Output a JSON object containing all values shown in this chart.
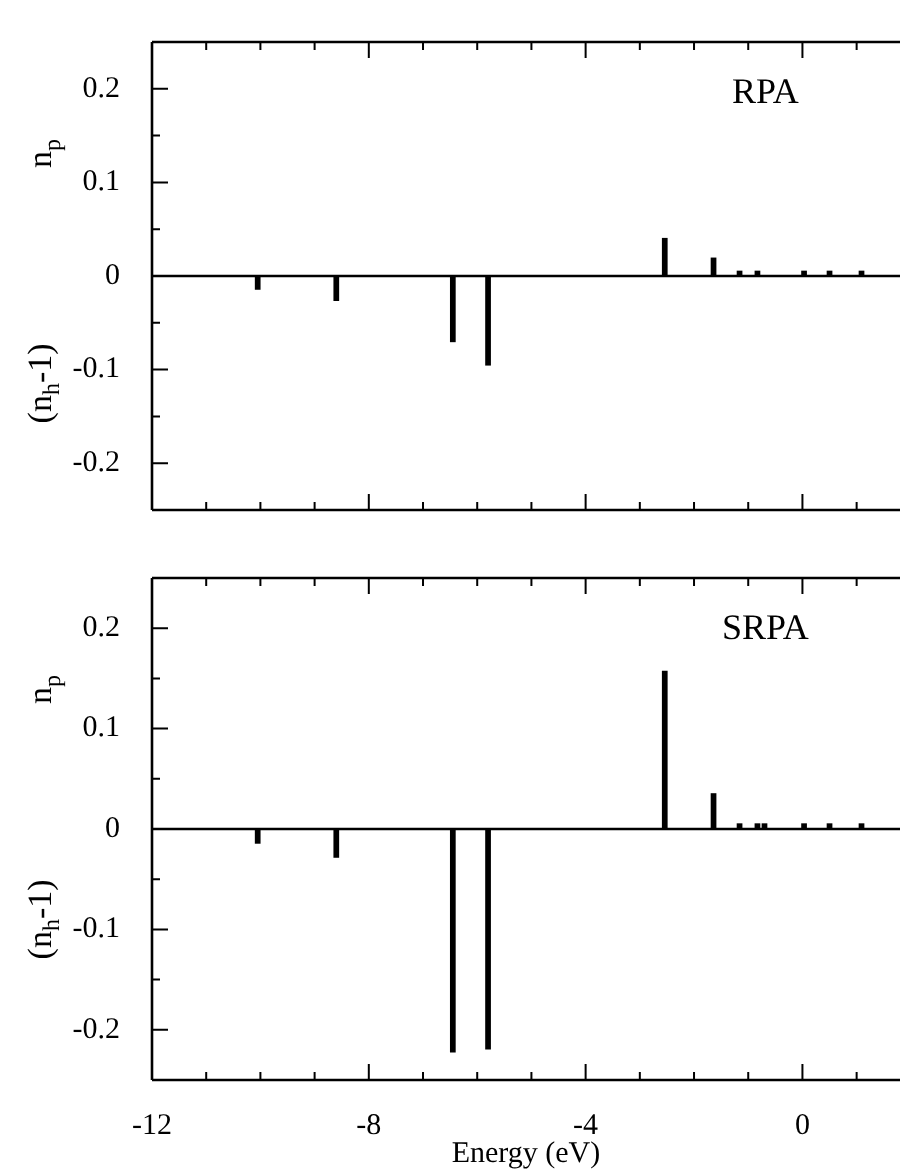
{
  "chart_data": [
    {
      "type": "bar",
      "title": "RPA",
      "ylabel": "n$_{p}$",
      "annotations": [
        "(n$_{h}$-1)"
      ],
      "x": [
        -10.05,
        -8.6,
        -6.45,
        -5.8,
        -2.54,
        -1.64,
        -1.16,
        -0.83,
        0.03,
        0.5,
        1.09
      ],
      "series": [
        {
          "color": "#000000",
          "values": [
            -0.014,
            -0.026,
            -0.07,
            -0.095,
            0.04,
            0.019,
            0.005,
            0.005,
            0.005,
            0.005,
            0.005
          ]
        }
      ],
      "xlim": [
        -12,
        1.8
      ],
      "ylim": [
        -0.25,
        0.25
      ],
      "xticks": [
        -12,
        {
          "value": -11,
          "label": null
        },
        {
          "value": -10,
          "label": null
        },
        {
          "value": -9,
          "label": null
        },
        -8,
        {
          "value": -7,
          "label": null
        },
        {
          "value": -6,
          "label": null
        },
        {
          "value": -5,
          "label": null
        },
        -4,
        {
          "value": -3,
          "label": null
        },
        {
          "value": -2,
          "label": null
        },
        {
          "value": -1,
          "label": null
        },
        0,
        {
          "value": 1,
          "label": null
        }
      ],
      "yticks": [
        {
          "value": -0.25,
          "label": null
        },
        -0.2,
        {
          "value": -0.15,
          "label": null
        },
        -0.1,
        {
          "value": -0.05,
          "label": null
        },
        0,
        {
          "value": 0.05,
          "label": null
        },
        0.1,
        {
          "value": 0.15,
          "label": null
        },
        0.2
      ],
      "ref_lines": [
        {
          "axis": "y",
          "value": 0
        }
      ],
      "grid": false,
      "tick_labels": "y"
    },
    {
      "type": "bar",
      "title": "SRPA",
      "ylabel": "n$_{p}$",
      "xlabel": "Energy (eV)",
      "annotations": [
        "(n$_{h}$-1)"
      ],
      "x": [
        -10.05,
        -8.6,
        -6.45,
        -5.8,
        -2.54,
        -1.64,
        -1.16,
        -0.83,
        -0.7,
        0.03,
        0.5,
        1.09
      ],
      "series": [
        {
          "color": "#000000",
          "values": [
            -0.014,
            -0.028,
            -0.222,
            -0.219,
            0.157,
            0.035,
            0.005,
            0.005,
            0.005,
            0.005,
            0.005,
            0.005
          ]
        }
      ],
      "xlim": [
        -12,
        1.8
      ],
      "ylim": [
        -0.25,
        0.25
      ],
      "xticks": [
        -12,
        {
          "value": -11,
          "label": null
        },
        {
          "value": -10,
          "label": null
        },
        {
          "value": -9,
          "label": null
        },
        -8,
        {
          "value": -7,
          "label": null
        },
        {
          "value": -6,
          "label": null
        },
        {
          "value": -5,
          "label": null
        },
        -4,
        {
          "value": -3,
          "label": null
        },
        {
          "value": -2,
          "label": null
        },
        {
          "value": -1,
          "label": null
        },
        0,
        {
          "value": 1,
          "label": null
        }
      ],
      "yticks": [
        {
          "value": -0.25,
          "label": null
        },
        -0.2,
        {
          "value": -0.15,
          "label": null
        },
        -0.1,
        {
          "value": -0.05,
          "label": null
        },
        0,
        {
          "value": 0.05,
          "label": null
        },
        0.1,
        {
          "value": 0.15,
          "label": null
        },
        0.2
      ],
      "ref_lines": [
        {
          "axis": "y",
          "value": 0
        }
      ],
      "grid": false
    }
  ]
}
